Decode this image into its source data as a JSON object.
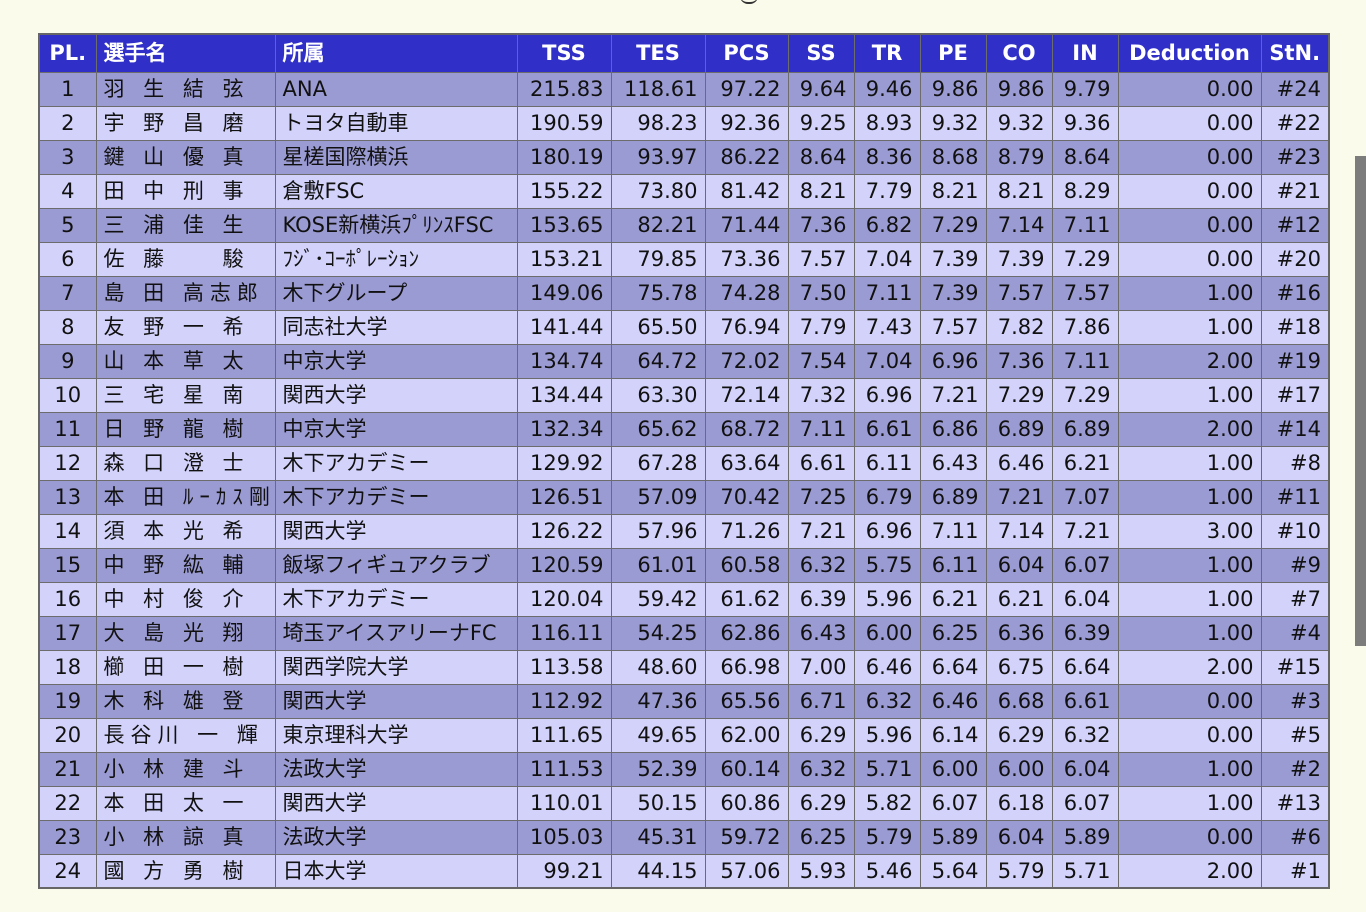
{
  "table": {
    "headers": [
      "PL.",
      "選手名",
      "所属",
      "TSS",
      "TES",
      "PCS",
      "SS",
      "TR",
      "PE",
      "CO",
      "IN",
      "Deduction",
      "StN."
    ],
    "rows": [
      [
        "1",
        "羽 生 結 弦",
        "ANA",
        "215.83",
        "118.61",
        "97.22",
        "9.64",
        "9.46",
        "9.86",
        "9.86",
        "9.79",
        "0.00",
        "#24"
      ],
      [
        "2",
        "宇 野 昌 磨",
        "トヨタ自動車",
        "190.59",
        "98.23",
        "92.36",
        "9.25",
        "8.93",
        "9.32",
        "9.32",
        "9.36",
        "0.00",
        "#22"
      ],
      [
        "3",
        "鍵 山 優 真",
        "星槎国際横浜",
        "180.19",
        "93.97",
        "86.22",
        "8.64",
        "8.36",
        "8.68",
        "8.79",
        "8.64",
        "0.00",
        "#23"
      ],
      [
        "4",
        "田 中 刑 事",
        "倉敷FSC",
        "155.22",
        "73.80",
        "81.42",
        "8.21",
        "7.79",
        "8.21",
        "8.21",
        "8.29",
        "0.00",
        "#21"
      ],
      [
        "5",
        "三 浦 佳 生",
        "KOSE新横浜ﾌﾟﾘﾝｽFSC",
        "153.65",
        "82.21",
        "71.44",
        "7.36",
        "6.82",
        "7.29",
        "7.14",
        "7.11",
        "0.00",
        "#12"
      ],
      [
        "6",
        "佐 藤 　 駿",
        "ﾌｼﾞ･ｺｰﾎﾟﾚｰｼｮﾝ",
        "153.21",
        "79.85",
        "73.36",
        "7.57",
        "7.04",
        "7.39",
        "7.39",
        "7.29",
        "0.00",
        "#20"
      ],
      [
        "7",
        "島 田 高志郎",
        "木下グループ",
        "149.06",
        "75.78",
        "74.28",
        "7.50",
        "7.11",
        "7.39",
        "7.57",
        "7.57",
        "1.00",
        "#16"
      ],
      [
        "8",
        "友 野 一 希",
        "同志社大学",
        "141.44",
        "65.50",
        "76.94",
        "7.79",
        "7.43",
        "7.57",
        "7.82",
        "7.86",
        "1.00",
        "#18"
      ],
      [
        "9",
        "山 本 草 太",
        "中京大学",
        "134.74",
        "64.72",
        "72.02",
        "7.54",
        "7.04",
        "6.96",
        "7.36",
        "7.11",
        "2.00",
        "#19"
      ],
      [
        "10",
        "三 宅 星 南",
        "関西大学",
        "134.44",
        "63.30",
        "72.14",
        "7.32",
        "6.96",
        "7.21",
        "7.29",
        "7.29",
        "1.00",
        "#17"
      ],
      [
        "11",
        "日 野 龍 樹",
        "中京大学",
        "132.34",
        "65.62",
        "68.72",
        "7.11",
        "6.61",
        "6.86",
        "6.89",
        "6.89",
        "2.00",
        "#14"
      ],
      [
        "12",
        "森 口 澄 士",
        "木下アカデミー",
        "129.92",
        "67.28",
        "63.64",
        "6.61",
        "6.11",
        "6.43",
        "6.46",
        "6.21",
        "1.00",
        "#8"
      ],
      [
        "13",
        "本 田 ﾙｰｶｽ剛史",
        "木下アカデミー",
        "126.51",
        "57.09",
        "70.42",
        "7.25",
        "6.79",
        "6.89",
        "7.21",
        "7.07",
        "1.00",
        "#11"
      ],
      [
        "14",
        "須 本 光 希",
        "関西大学",
        "126.22",
        "57.96",
        "71.26",
        "7.21",
        "6.96",
        "7.11",
        "7.14",
        "7.21",
        "3.00",
        "#10"
      ],
      [
        "15",
        "中 野 紘 輔",
        "飯塚フィギュアクラブ",
        "120.59",
        "61.01",
        "60.58",
        "6.32",
        "5.75",
        "6.11",
        "6.04",
        "6.07",
        "1.00",
        "#9"
      ],
      [
        "16",
        "中 村 俊 介",
        "木下アカデミー",
        "120.04",
        "59.42",
        "61.62",
        "6.39",
        "5.96",
        "6.21",
        "6.21",
        "6.04",
        "1.00",
        "#7"
      ],
      [
        "17",
        "大 島 光 翔",
        "埼玉アイスアリーナFC",
        "116.11",
        "54.25",
        "62.86",
        "6.43",
        "6.00",
        "6.25",
        "6.36",
        "6.39",
        "1.00",
        "#4"
      ],
      [
        "18",
        "櫛 田 一 樹",
        "関西学院大学",
        "113.58",
        "48.60",
        "66.98",
        "7.00",
        "6.46",
        "6.64",
        "6.75",
        "6.64",
        "2.00",
        "#15"
      ],
      [
        "19",
        "木 科 雄 登",
        "関西大学",
        "112.92",
        "47.36",
        "65.56",
        "6.71",
        "6.32",
        "6.46",
        "6.68",
        "6.61",
        "0.00",
        "#3"
      ],
      [
        "20",
        "長谷川 一 輝",
        "東京理科大学",
        "111.65",
        "49.65",
        "62.00",
        "6.29",
        "5.96",
        "6.14",
        "6.29",
        "6.32",
        "0.00",
        "#5"
      ],
      [
        "21",
        "小 林 建 斗",
        "法政大学",
        "111.53",
        "52.39",
        "60.14",
        "6.32",
        "5.71",
        "6.00",
        "6.00",
        "6.04",
        "1.00",
        "#2"
      ],
      [
        "22",
        "本 田 太 一",
        "関西大学",
        "110.01",
        "50.15",
        "60.86",
        "6.29",
        "5.82",
        "6.07",
        "6.18",
        "6.07",
        "1.00",
        "#13"
      ],
      [
        "23",
        "小 林 諒 真",
        "法政大学",
        "105.03",
        "45.31",
        "59.72",
        "6.25",
        "5.79",
        "5.89",
        "6.04",
        "5.89",
        "0.00",
        "#6"
      ],
      [
        "24",
        "國 方 勇 樹",
        "日本大学",
        "99.21",
        "44.15",
        "57.06",
        "5.93",
        "5.46",
        "5.64",
        "5.79",
        "5.71",
        "2.00",
        "#1"
      ]
    ]
  },
  "colors": {
    "header_bg": "#3030c8",
    "header_text": "#ffffff",
    "row_odd": "#9b9bd4",
    "row_even": "#d2d2fa",
    "page_bg": "#fbfbeb"
  }
}
